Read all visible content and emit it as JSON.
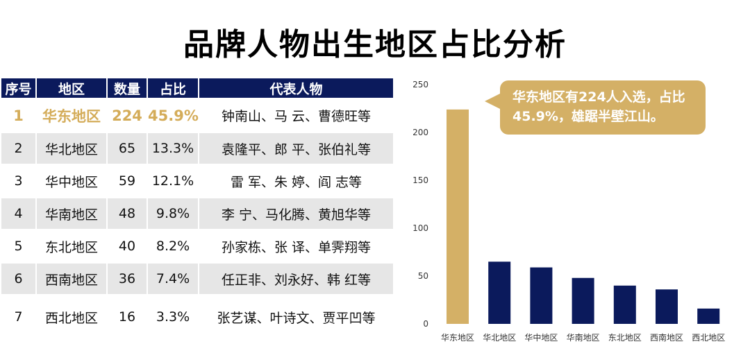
{
  "title": "品牌人物出生地区占比分析",
  "table": {
    "headers": [
      "序号",
      "地区",
      "数量",
      "占比",
      "代表人物"
    ],
    "rows": [
      {
        "rank": "1",
        "region": "华东地区",
        "count": "224",
        "share": "45.9%",
        "people": "钟南山、马 云、曹德旺等"
      },
      {
        "rank": "2",
        "region": "华北地区",
        "count": "65",
        "share": "13.3%",
        "people": "袁隆平、郎 平、张伯礼等"
      },
      {
        "rank": "3",
        "region": "华中地区",
        "count": "59",
        "share": "12.1%",
        "people": "雷 军、朱 婷、阎 志等"
      },
      {
        "rank": "4",
        "region": "华南地区",
        "count": "48",
        "share": "9.8%",
        "people": "李 宁、马化腾、黄旭华等"
      },
      {
        "rank": "5",
        "region": "东北地区",
        "count": "40",
        "share": "8.2%",
        "people": "孙家栋、张 译、单霁翔等"
      },
      {
        "rank": "6",
        "region": "西南地区",
        "count": "36",
        "share": "7.4%",
        "people": "任正非、刘永好、韩 红等"
      },
      {
        "rank": "7",
        "region": "西北地区",
        "count": "16",
        "share": "3.3%",
        "people": "张艺谋、叶诗文、贾平凹等"
      }
    ]
  },
  "callout": {
    "text": "华东地区有224人入选，占比45.9%，雄踞半壁江山。"
  },
  "colors": {
    "header_bg": "#0b1a5c",
    "highlight": "#d4ac59",
    "bar": "#0b1a5c",
    "bar_highlight": "#d4b066",
    "row_alt": "#e6e6e6"
  },
  "chart_data": {
    "type": "bar",
    "categories": [
      "华东地区",
      "华北地区",
      "华中地区",
      "华南地区",
      "东北地区",
      "西南地区",
      "西北地区"
    ],
    "values": [
      224,
      65,
      59,
      48,
      40,
      36,
      16
    ],
    "ylim": [
      0,
      250
    ],
    "yticks": [
      0,
      50,
      100,
      150,
      200,
      250
    ],
    "grid": false,
    "highlight_index": 0
  }
}
